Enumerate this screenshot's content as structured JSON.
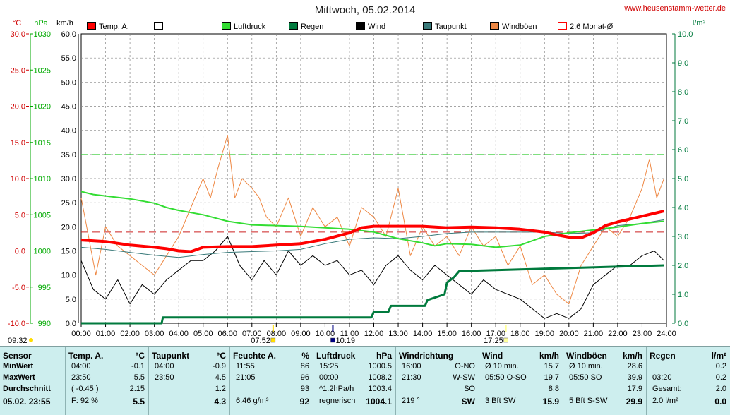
{
  "title": "Mittwoch, 05.02.2014",
  "site": "www.heusenstamm-wetter.de",
  "axis_units": {
    "temp": "°C",
    "pressure": "hPa",
    "speed": "km/h",
    "rain": "l/m²"
  },
  "legend": [
    {
      "label": "Temp. A.",
      "color": "#ff0000",
      "fill": true
    },
    {
      "label": "",
      "color": "#ffffff",
      "fill": true
    },
    {
      "label": "Luftdruck",
      "color": "#33dd33",
      "fill": true
    },
    {
      "label": "Regen",
      "color": "#007a3d",
      "fill": true
    },
    {
      "label": "Wind",
      "color": "#000000",
      "fill": true
    },
    {
      "label": "Taupunkt",
      "color": "#3a7a7a",
      "fill": true
    },
    {
      "label": "Windböen",
      "color": "#ee8844",
      "fill": true
    },
    {
      "label": "2.6 Monat-Ø",
      "color": "#ff0000",
      "fill": false
    }
  ],
  "time_markers": [
    {
      "label": "09:32",
      "color": "#ffdd00",
      "hour": null
    },
    {
      "label": "07:52",
      "color": "#ffdd00",
      "hour": 7.87
    },
    {
      "label": "10:19",
      "color": "#000080",
      "hour": 10.32
    },
    {
      "label": "17:25",
      "color": "#ffff99",
      "hour": 17.42
    }
  ],
  "chart_data": {
    "type": "line",
    "x_ticks": [
      "00:00",
      "01:00",
      "02:00",
      "03:00",
      "04:00",
      "05:00",
      "06:00",
      "07:00",
      "08:00",
      "09:00",
      "10:00",
      "11:00",
      "12:00",
      "13:00",
      "14:00",
      "15:00",
      "16:00",
      "17:00",
      "18:00",
      "19:00",
      "20:00",
      "21:00",
      "22:00",
      "23:00",
      "24:00"
    ],
    "xlim": [
      0,
      24
    ],
    "y_temp": {
      "label": "°C",
      "ticks": [
        "30.0",
        "25.0",
        "20.0",
        "15.0",
        "10.0",
        "5.0",
        "0.0",
        "-5.0",
        "-10.0"
      ],
      "ylim": [
        -10,
        30
      ]
    },
    "y_pressure": {
      "label": "hPa",
      "ticks": [
        "1030",
        "1025",
        "1020",
        "1015",
        "1010",
        "1005",
        "1000",
        "995",
        "990"
      ],
      "ylim": [
        990,
        1030
      ]
    },
    "y_speed": {
      "label": "km/h",
      "ticks": [
        "60.0",
        "55.0",
        "50.0",
        "45.0",
        "40.0",
        "35.0",
        "30.0",
        "25.0",
        "20.0",
        "15.0",
        "10.0",
        "5.0",
        "0.0"
      ],
      "ylim": [
        0,
        60
      ]
    },
    "y_rain": {
      "label": "l/m²",
      "ticks": [
        "10.0",
        "9.0",
        "8.0",
        "7.0",
        "6.0",
        "5.0",
        "4.0",
        "3.0",
        "2.0",
        "1.0",
        "0.0"
      ],
      "ylim": [
        0,
        10
      ]
    },
    "grid": true,
    "reference_lines": {
      "temp_month_avg": 2.6,
      "pressure_dotted": 1000.0,
      "speed_dashed": 35.0
    },
    "series": [
      {
        "name": "Temp. A.",
        "axis": "temp",
        "color": "#ff0000",
        "x": [
          0,
          1,
          2,
          3,
          3.5,
          4,
          4.5,
          5,
          6,
          7,
          8,
          9,
          10,
          11,
          11.5,
          12,
          13,
          14,
          15,
          16,
          17,
          18,
          19,
          19.5,
          20,
          20.5,
          21,
          21.5,
          22,
          23,
          23.9
        ],
        "y": [
          1.5,
          1.3,
          0.8,
          0.5,
          0.3,
          0.0,
          -0.1,
          0.5,
          0.6,
          0.6,
          0.8,
          1.0,
          1.6,
          2.5,
          3.2,
          3.4,
          3.4,
          3.4,
          3.2,
          3.3,
          3.2,
          3.0,
          2.6,
          2.2,
          1.9,
          1.8,
          2.5,
          3.5,
          4.0,
          4.8,
          5.5
        ]
      },
      {
        "name": "Taupunkt",
        "axis": "temp",
        "color": "#3a7a7a",
        "x": [
          0,
          1,
          2,
          3,
          4,
          5,
          6,
          7,
          8,
          9,
          10,
          11,
          12,
          13,
          14,
          15,
          16,
          17,
          18,
          19,
          20,
          21,
          22,
          23,
          23.9
        ],
        "y": [
          0.5,
          0.2,
          -0.2,
          -0.6,
          -0.9,
          -0.5,
          -0.2,
          -0.1,
          0.0,
          0.2,
          1.0,
          1.6,
          1.8,
          1.7,
          2.0,
          2.4,
          2.6,
          2.6,
          2.6,
          2.6,
          2.4,
          2.5,
          3.5,
          3.8,
          4.3
        ]
      },
      {
        "name": "Luftdruck",
        "axis": "pressure",
        "color": "#33dd33",
        "x": [
          0,
          0.5,
          1,
          2,
          3,
          3.5,
          4,
          5,
          6,
          7,
          8,
          9,
          10,
          11,
          12,
          13,
          14,
          14.5,
          15,
          16,
          17,
          18,
          19,
          20,
          21,
          22,
          23,
          23.9
        ],
        "y": [
          1008.2,
          1007.8,
          1007.6,
          1007.2,
          1006.6,
          1006.0,
          1005.6,
          1005.0,
          1004.1,
          1003.6,
          1003.5,
          1003.4,
          1003.2,
          1003.0,
          1002.6,
          1001.7,
          1001.1,
          1000.7,
          1001.0,
          1000.9,
          1000.5,
          1000.8,
          1002.0,
          1002.5,
          1002.9,
          1003.3,
          1003.8,
          1004.1
        ]
      },
      {
        "name": "Regen",
        "axis": "rain",
        "color": "#007a3d",
        "x": [
          0,
          3.3,
          3.35,
          8,
          11.9,
          12,
          12.6,
          12.7,
          14.1,
          14.2,
          14.9,
          15.0,
          15.3,
          15.5,
          23.9
        ],
        "y": [
          0,
          0,
          0.2,
          0.2,
          0.2,
          0.4,
          0.4,
          0.6,
          0.6,
          0.8,
          1.0,
          1.4,
          1.6,
          1.8,
          2.0
        ]
      },
      {
        "name": "Wind",
        "axis": "speed",
        "color": "#000000",
        "x": [
          0,
          0.5,
          1,
          1.5,
          2,
          2.5,
          3,
          3.5,
          4,
          4.5,
          5,
          5.5,
          6,
          6.5,
          7,
          7.5,
          8,
          8.5,
          9,
          9.5,
          10,
          10.5,
          11,
          11.5,
          12,
          12.5,
          13,
          13.5,
          14,
          14.5,
          15,
          15.5,
          16,
          16.5,
          17,
          17.5,
          18,
          18.5,
          19,
          19.5,
          20,
          20.5,
          21,
          21.5,
          22,
          22.5,
          23,
          23.5,
          23.9
        ],
        "y": [
          13,
          7,
          5,
          9,
          4,
          8,
          6,
          9,
          11,
          13,
          13,
          15,
          18,
          12,
          9,
          13,
          10,
          15,
          12,
          14,
          12,
          13,
          10,
          11,
          8,
          12,
          14,
          11,
          9,
          12,
          10,
          8,
          6,
          9,
          7,
          6,
          5,
          3,
          1,
          2,
          1,
          3,
          8,
          10,
          12,
          12,
          14,
          15,
          13
        ]
      },
      {
        "name": "Windböen",
        "axis": "speed",
        "color": "#ee8844",
        "x": [
          0,
          0.3,
          0.6,
          1,
          1.5,
          2,
          2.5,
          3,
          3.5,
          4,
          4.5,
          5,
          5.3,
          5.6,
          6,
          6.3,
          6.6,
          7,
          7.3,
          7.6,
          8,
          8.5,
          9,
          9.5,
          10,
          10.5,
          11,
          11.5,
          12,
          12.5,
          13,
          13.5,
          14,
          14.5,
          15,
          15.5,
          16,
          16.5,
          17,
          17.5,
          18,
          18.5,
          19,
          19.5,
          20,
          20.5,
          21,
          21.5,
          22,
          22.5,
          23,
          23.3,
          23.6,
          23.9
        ],
        "y": [
          26,
          18,
          10,
          20,
          16,
          14,
          12,
          10,
          14,
          18,
          24,
          30,
          26,
          32,
          39,
          26,
          30,
          28,
          26,
          22,
          20,
          26,
          18,
          24,
          20,
          22,
          16,
          24,
          22,
          18,
          28,
          14,
          20,
          16,
          18,
          14,
          20,
          16,
          18,
          12,
          16,
          8,
          10,
          6,
          4,
          12,
          16,
          20,
          18,
          22,
          28,
          34,
          26,
          30
        ]
      }
    ]
  },
  "stats": {
    "row_labels": [
      "Sensor",
      "MinWert",
      "MaxWert",
      "Durchschnitt",
      "05.02. 23:55"
    ],
    "columns": [
      {
        "key": "temp",
        "header": "Temp. A.",
        "unit": "°C",
        "rows": [
          [
            "04:00",
            "-0.1"
          ],
          [
            "23:50",
            "5.5"
          ],
          [
            "( -0.45 )",
            "2.15"
          ],
          [
            "F: 92 %",
            "5.5"
          ]
        ]
      },
      {
        "key": "dew",
        "header": "Taupunkt",
        "unit": "°C",
        "rows": [
          [
            "04:00",
            "-0.9"
          ],
          [
            "23:50",
            "4.5"
          ],
          [
            "",
            "1.2"
          ],
          [
            "",
            "4.3"
          ]
        ]
      },
      {
        "key": "hum",
        "header": "Feuchte A.",
        "unit": "%",
        "rows": [
          [
            "11:55",
            "86"
          ],
          [
            "21:05",
            "96"
          ],
          [
            "",
            "93"
          ],
          [
            "6.46 g/m³",
            "92"
          ]
        ]
      },
      {
        "key": "press",
        "header": "Luftdruck",
        "unit": "hPa",
        "rows": [
          [
            "15:25",
            "1000.5"
          ],
          [
            "00:00",
            "1008.2"
          ],
          [
            "^1.2hPa/h",
            "1003.4"
          ],
          [
            "regnerisch",
            "1004.1"
          ]
        ]
      },
      {
        "key": "dir",
        "header": "Windrichtung",
        "unit": "",
        "rows": [
          [
            "16:00",
            "O-NO"
          ],
          [
            "21:30",
            "W-SW"
          ],
          [
            "",
            "SO"
          ],
          [
            "219 °",
            "SW"
          ]
        ]
      },
      {
        "key": "wind",
        "header": "Wind",
        "unit": "km/h",
        "rows": [
          [
            "Ø 10 min.",
            "15.7"
          ],
          [
            "05:50  O-SO",
            "19.7"
          ],
          [
            "",
            "8.8"
          ],
          [
            "3 Bft SW",
            "15.9"
          ]
        ]
      },
      {
        "key": "gust",
        "header": "Windböen",
        "unit": "km/h",
        "rows": [
          [
            "Ø 10 min.",
            "28.6"
          ],
          [
            "05:50  SO",
            "39.9"
          ],
          [
            "",
            "17.9"
          ],
          [
            "5 Bft S-SW",
            "29.9"
          ]
        ]
      },
      {
        "key": "rain",
        "header": "Regen",
        "unit": "l/m²",
        "rows": [
          [
            "",
            "0.2"
          ],
          [
            "03:20",
            "0.2"
          ],
          [
            "Gesamt:",
            "2.0"
          ],
          [
            "2.0 l/m²",
            "0.0"
          ]
        ]
      }
    ]
  }
}
